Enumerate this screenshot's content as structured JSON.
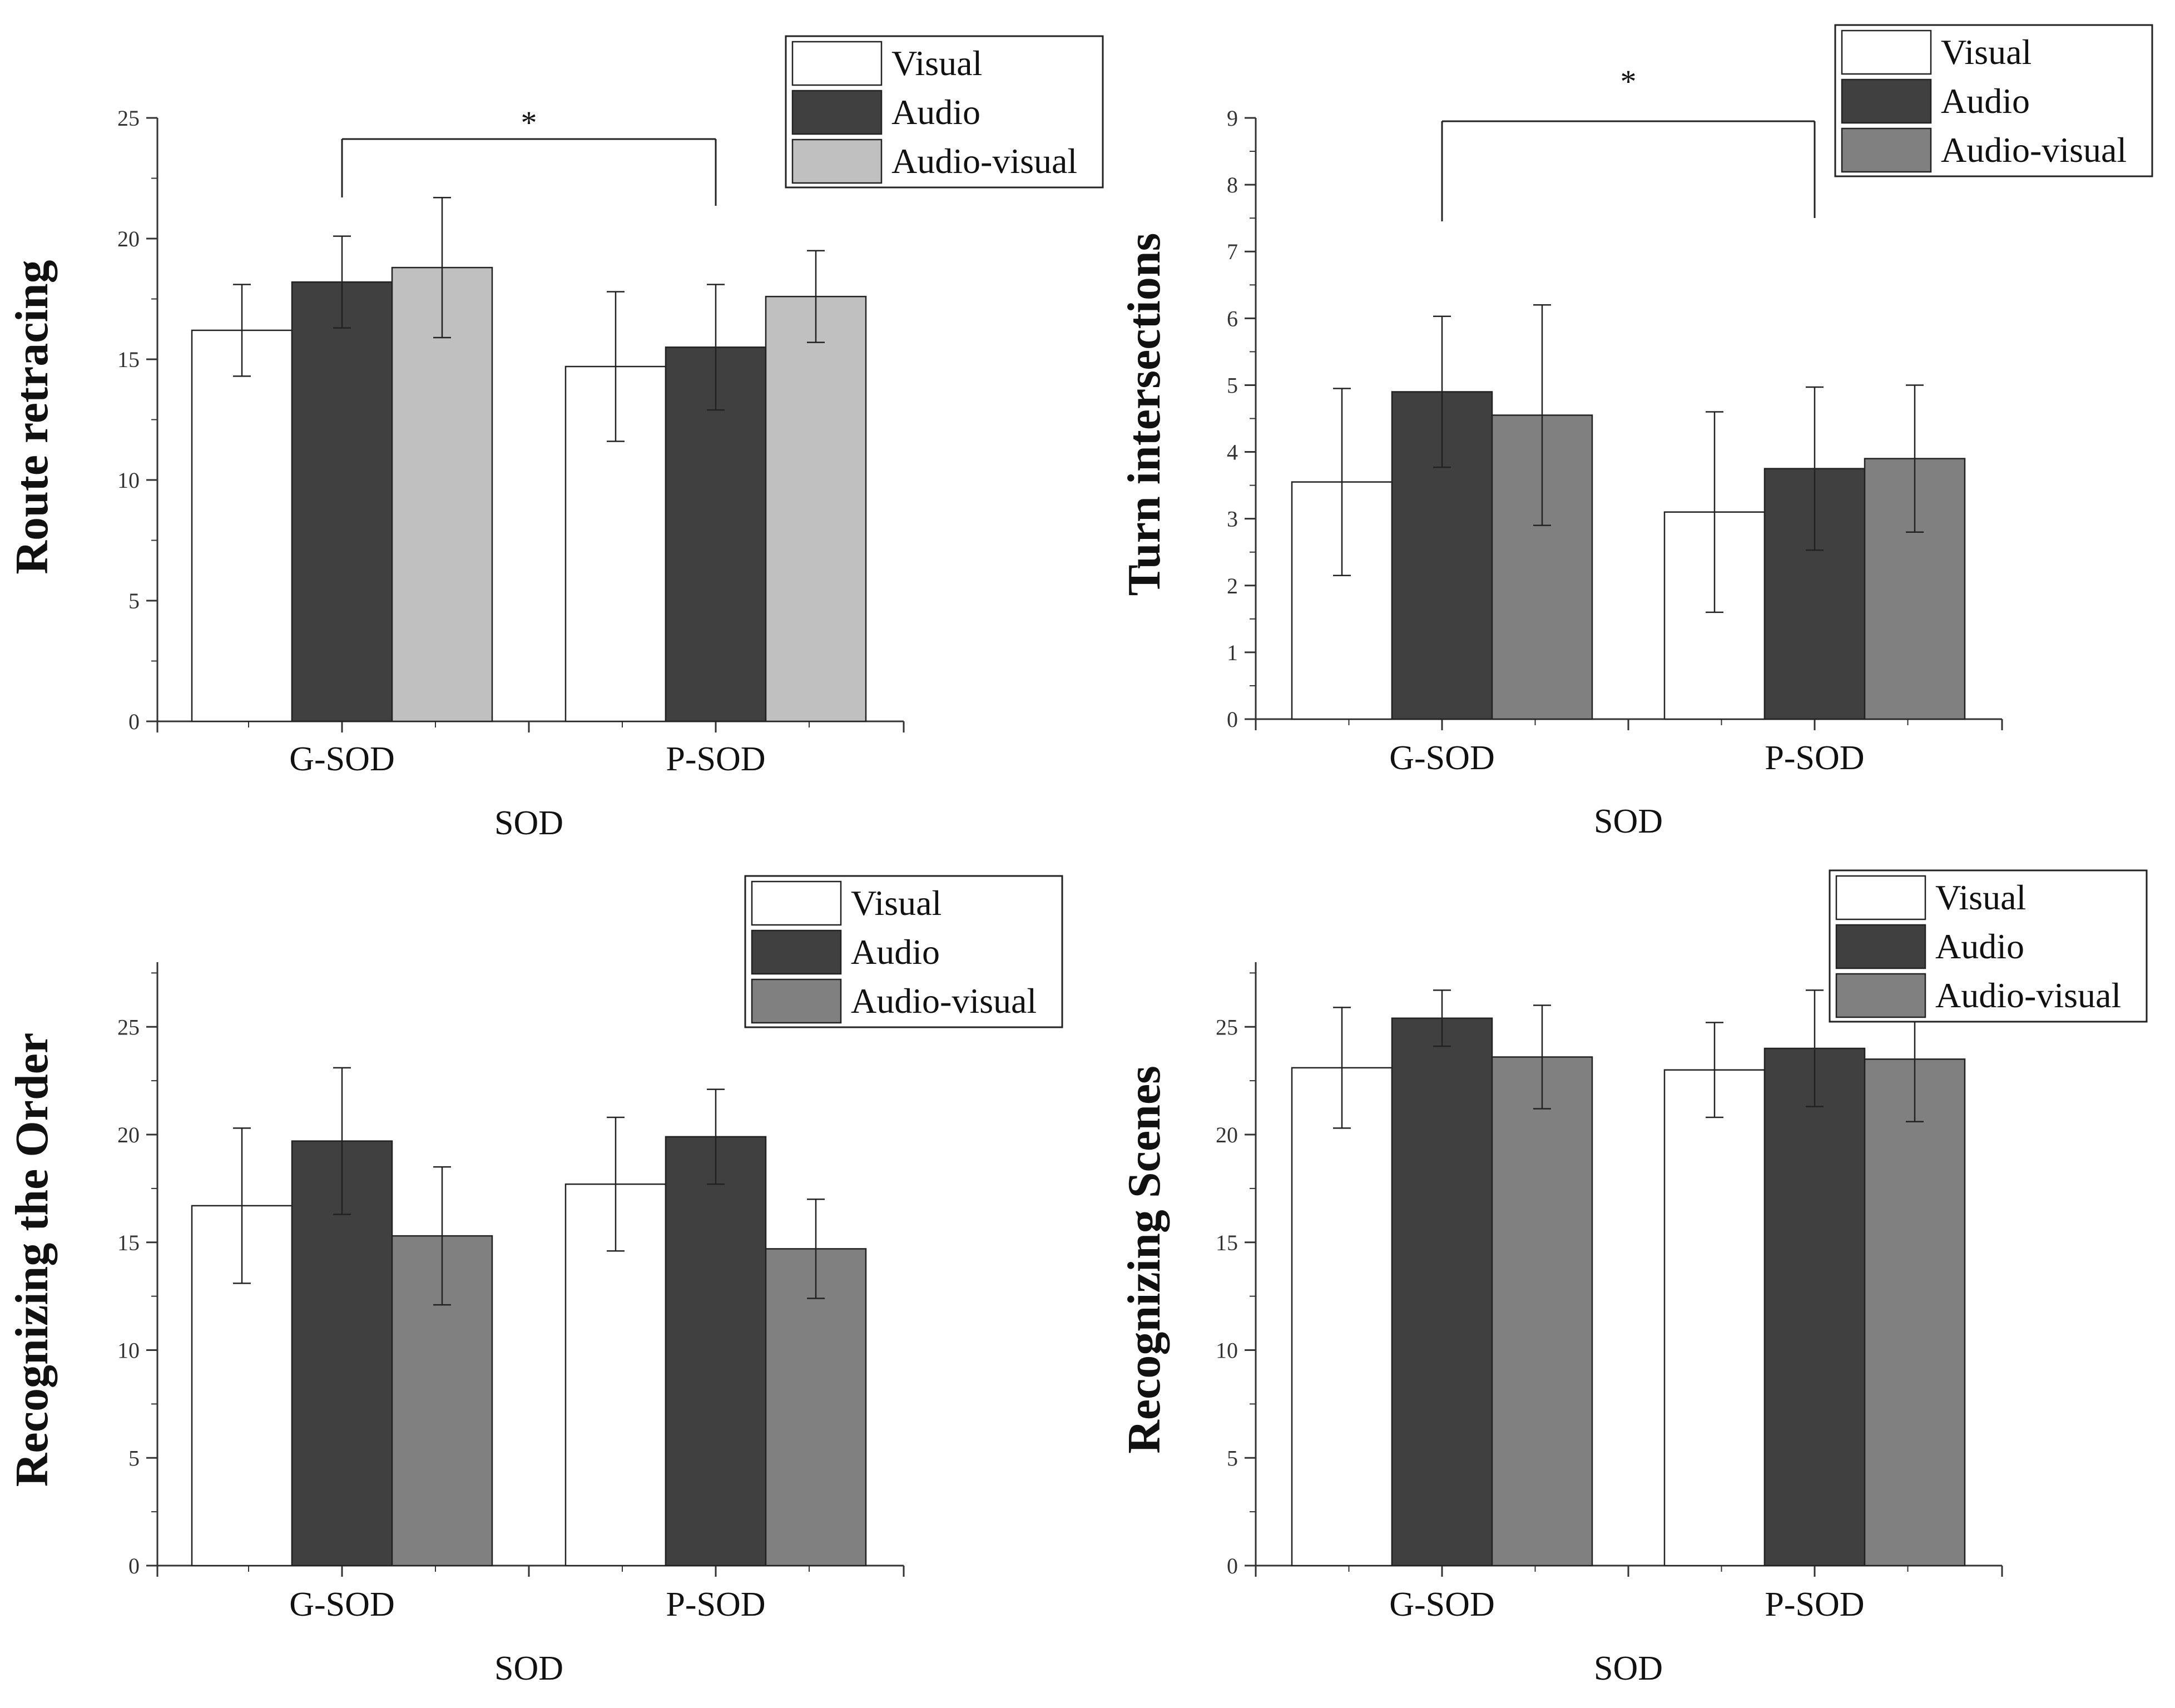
{
  "chart_data": [
    {
      "type": "bar",
      "title": "",
      "xlabel": "SOD",
      "ylabel": "Route retracing",
      "categories": [
        "G-SOD",
        "P-SOD"
      ],
      "ylim": [
        0,
        25
      ],
      "yticks": [
        0,
        5,
        10,
        15,
        20,
        25
      ],
      "series": [
        {
          "name": "Visual",
          "color": "#ffffff",
          "values": [
            16.2,
            14.7
          ],
          "errors": [
            1.9,
            3.1
          ]
        },
        {
          "name": "Audio",
          "color": "#404040",
          "values": [
            18.2,
            15.5
          ],
          "errors": [
            1.9,
            2.6
          ]
        },
        {
          "name": "Audio-visual",
          "color": "#c0c0c0",
          "values": [
            18.8,
            17.6
          ],
          "errors": [
            2.9,
            1.9
          ]
        }
      ],
      "significance": {
        "label": "*",
        "between": [
          "G-SOD",
          "P-SOD"
        ]
      },
      "legend_position": "top-right"
    },
    {
      "type": "bar",
      "title": "",
      "xlabel": "SOD",
      "ylabel": "Turn intersections",
      "categories": [
        "G-SOD",
        "P-SOD"
      ],
      "ylim": [
        0,
        9
      ],
      "yticks": [
        0,
        1,
        2,
        3,
        4,
        5,
        6,
        7,
        8,
        9
      ],
      "series": [
        {
          "name": "Visual",
          "color": "#ffffff",
          "values": [
            3.55,
            3.1
          ],
          "errors": [
            1.4,
            1.5
          ]
        },
        {
          "name": "Audio",
          "color": "#404040",
          "values": [
            4.9,
            3.75
          ],
          "errors": [
            1.13,
            1.22
          ]
        },
        {
          "name": "Audio-visual",
          "color": "#808080",
          "values": [
            4.55,
            3.9
          ],
          "errors": [
            1.65,
            1.1
          ]
        }
      ],
      "significance": {
        "label": "*",
        "between": [
          "G-SOD",
          "P-SOD"
        ]
      },
      "legend_position": "top-right"
    },
    {
      "type": "bar",
      "title": "",
      "xlabel": "SOD",
      "ylabel": "Recognizing the Order",
      "categories": [
        "G-SOD",
        "P-SOD"
      ],
      "ylim": [
        0,
        28
      ],
      "yticks": [
        0,
        5,
        10,
        15,
        20,
        25
      ],
      "series": [
        {
          "name": "Visual",
          "color": "#ffffff",
          "values": [
            16.7,
            17.7
          ],
          "errors": [
            3.6,
            3.1
          ]
        },
        {
          "name": "Audio",
          "color": "#404040",
          "values": [
            19.7,
            19.9
          ],
          "errors": [
            3.4,
            2.2
          ]
        },
        {
          "name": "Audio-visual",
          "color": "#808080",
          "values": [
            15.3,
            14.7
          ],
          "errors": [
            3.2,
            2.3
          ]
        }
      ],
      "legend_position": "top-right"
    },
    {
      "type": "bar",
      "title": "",
      "xlabel": "SOD",
      "ylabel": "Recognizing Scenes",
      "categories": [
        "G-SOD",
        "P-SOD"
      ],
      "ylim": [
        0,
        28
      ],
      "yticks": [
        0,
        5,
        10,
        15,
        20,
        25
      ],
      "series": [
        {
          "name": "Visual",
          "color": "#ffffff",
          "values": [
            23.1,
            23.0
          ],
          "errors": [
            2.8,
            2.2
          ]
        },
        {
          "name": "Audio",
          "color": "#404040",
          "values": [
            25.4,
            24.0
          ],
          "errors": [
            1.3,
            2.7
          ]
        },
        {
          "name": "Audio-visual",
          "color": "#808080",
          "values": [
            23.6,
            23.5
          ],
          "errors": [
            2.4,
            2.9
          ]
        }
      ],
      "legend_position": "top-right"
    }
  ]
}
